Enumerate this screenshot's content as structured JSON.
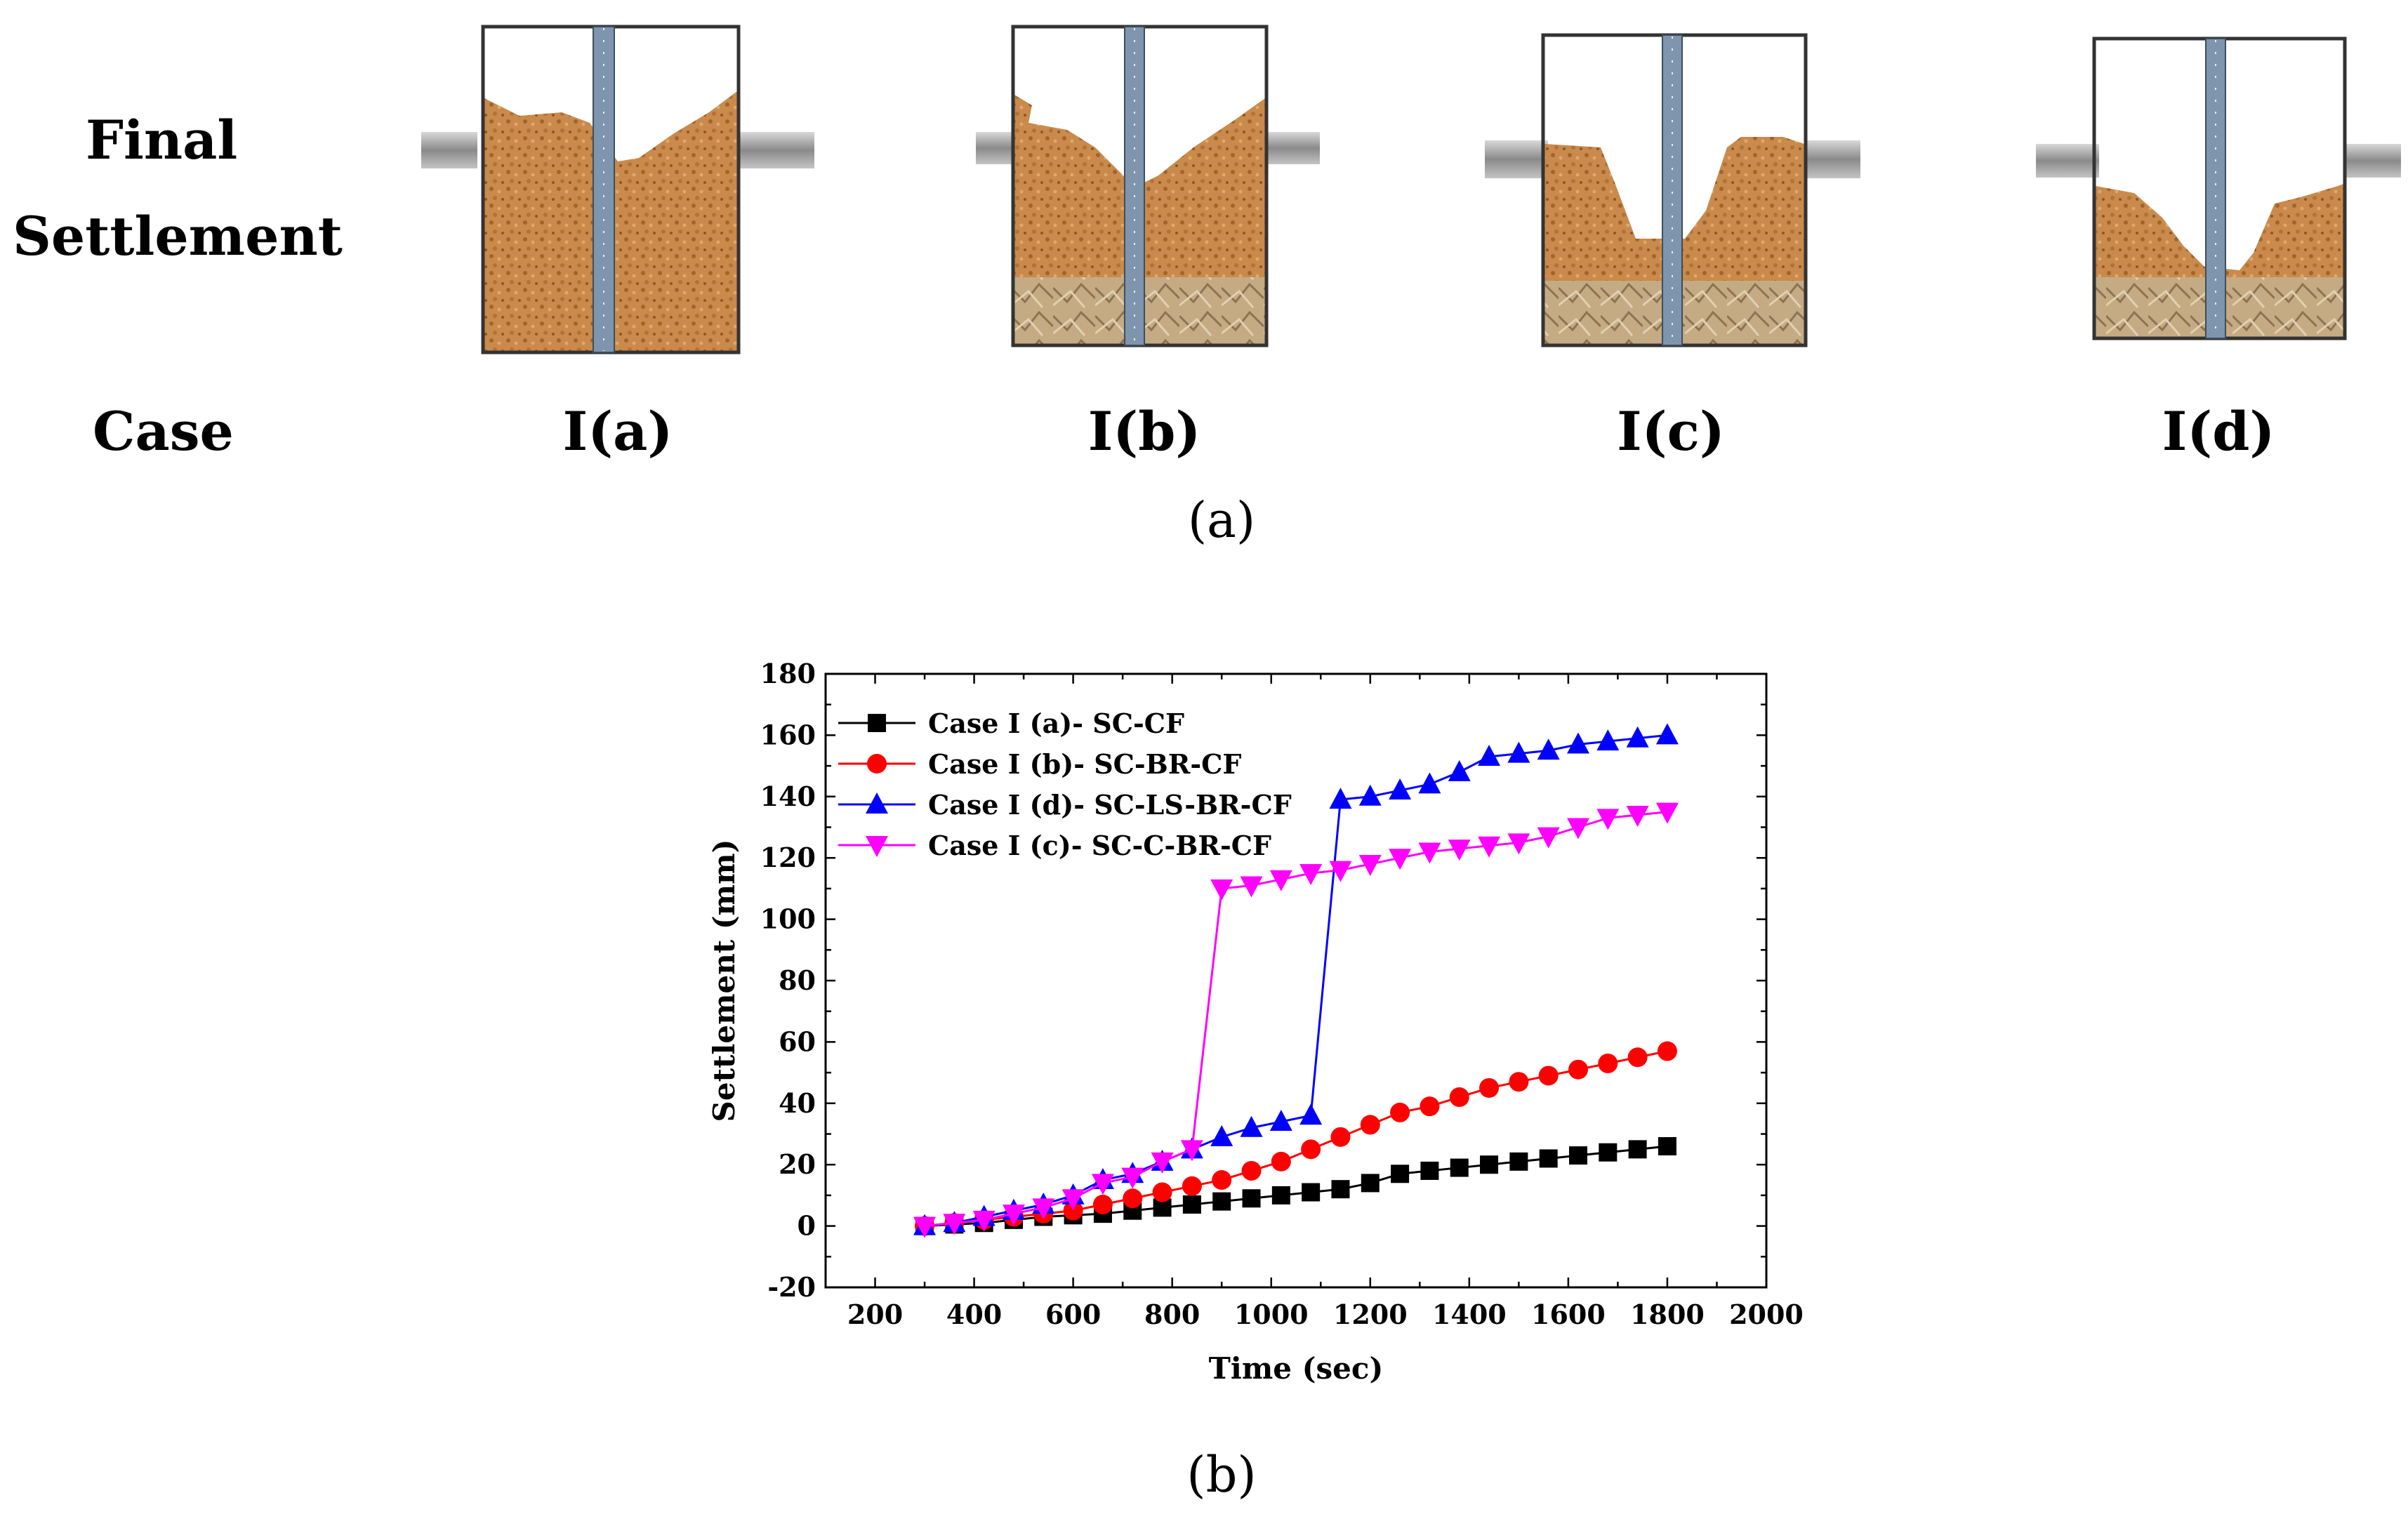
{
  "panel_a": {
    "row_label_line1": "Final",
    "row_label_line2": "Settlement",
    "case_row_label": "Case",
    "cases": [
      "I(a)",
      "I(b)",
      "I(c)",
      "I(d)"
    ],
    "caption": "(a)",
    "icon": "settlement-box-illustration-icon",
    "colors": {
      "soil": "#c98a4b",
      "soil_dark": "#a0642c",
      "base": "#b89f78",
      "ruler": "#7f95ad",
      "bar": "#9a9a9a"
    }
  },
  "panel_b": {
    "caption": "(b)"
  },
  "chart_data": {
    "type": "line",
    "xlabel": "Time (sec)",
    "ylabel": "Settlement (mm)",
    "xlim": [
      100,
      2000
    ],
    "ylim": [
      -20,
      180
    ],
    "xticks": [
      200,
      400,
      600,
      800,
      1000,
      1200,
      1400,
      1600,
      1800,
      2000
    ],
    "yticks": [
      -20,
      0,
      20,
      40,
      60,
      80,
      100,
      120,
      140,
      160,
      180
    ],
    "legend_position": "top-left",
    "series": [
      {
        "name": "Case I (a)- SC-CF",
        "color": "#000000",
        "marker": "square",
        "x": [
          300,
          360,
          420,
          480,
          540,
          600,
          660,
          720,
          780,
          840,
          900,
          960,
          1020,
          1080,
          1140,
          1200,
          1260,
          1320,
          1380,
          1440,
          1500,
          1560,
          1620,
          1680,
          1740,
          1800
        ],
        "y": [
          0,
          0.5,
          1,
          2,
          3,
          3.5,
          4,
          5,
          6,
          7,
          8,
          9,
          10,
          11,
          12,
          14,
          17,
          18,
          19,
          20,
          21,
          22,
          23,
          24,
          25,
          26
        ]
      },
      {
        "name": "Case I (b)-  SC-BR-CF",
        "color": "#ff0000",
        "marker": "circle",
        "x": [
          300,
          360,
          420,
          480,
          540,
          600,
          660,
          720,
          780,
          840,
          900,
          960,
          1020,
          1080,
          1140,
          1200,
          1260,
          1320,
          1380,
          1440,
          1500,
          1560,
          1620,
          1680,
          1740,
          1800
        ],
        "y": [
          0,
          1,
          2,
          3,
          4,
          5,
          7,
          9,
          11,
          13,
          15,
          18,
          21,
          25,
          29,
          33,
          37,
          39,
          42,
          45,
          47,
          49,
          51,
          53,
          55,
          57
        ]
      },
      {
        "name": "Case I (d)-  SC-LS-BR-CF",
        "color": "#0000ff",
        "marker": "triangle-up",
        "x": [
          300,
          360,
          420,
          480,
          540,
          600,
          660,
          720,
          780,
          840,
          900,
          960,
          1020,
          1080,
          1140,
          1200,
          1260,
          1320,
          1380,
          1440,
          1500,
          1560,
          1620,
          1680,
          1740,
          1800
        ],
        "y": [
          0,
          1,
          3,
          5,
          7,
          10,
          15,
          17,
          21,
          25,
          29,
          32,
          34,
          36,
          139,
          140,
          142,
          144,
          148,
          153,
          154,
          155,
          157,
          158,
          159,
          160
        ]
      },
      {
        "name": "Case I (c)-  SC-C-BR-CF",
        "color": "#ff00ff",
        "marker": "triangle-down",
        "x": [
          300,
          360,
          420,
          480,
          540,
          600,
          660,
          720,
          780,
          840,
          900,
          960,
          1020,
          1080,
          1140,
          1200,
          1260,
          1320,
          1380,
          1440,
          1500,
          1560,
          1620,
          1680,
          1740,
          1800
        ],
        "y": [
          0,
          1,
          2,
          4,
          6,
          9,
          14,
          16,
          21,
          25,
          110,
          111,
          113,
          115,
          116,
          118,
          120,
          122,
          123,
          124,
          125,
          127,
          130,
          133,
          134,
          135
        ]
      }
    ]
  }
}
